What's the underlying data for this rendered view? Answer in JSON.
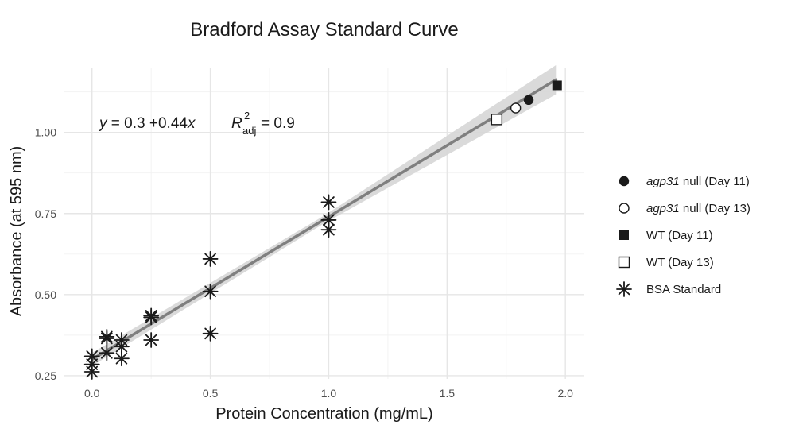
{
  "chart_data": {
    "type": "scatter",
    "title": "Bradford Assay Standard Curve",
    "xlabel": "Protein Concentration (mg/mL)",
    "ylabel": "Absorbance (at 595 nm)",
    "xlim": [
      -0.12,
      2.08
    ],
    "ylim": [
      0.24,
      1.2
    ],
    "x_ticks": [
      0.0,
      0.5,
      1.0,
      1.5,
      2.0
    ],
    "x_tick_labels": [
      "0.0",
      "0.5",
      "1.0",
      "1.5",
      "2.0"
    ],
    "y_ticks": [
      0.25,
      0.5,
      0.75,
      1.0
    ],
    "y_tick_labels": [
      "0.25",
      "0.50",
      "0.75",
      "1.00"
    ],
    "grid": true,
    "legend_position": "right",
    "regression": {
      "intercept": 0.3,
      "slope": 0.44,
      "x_range": [
        0.0,
        1.96
      ],
      "ci_halfwidth_low": 0.02,
      "ci_halfwidth_mid": 0.012,
      "ci_halfwidth_high": 0.045,
      "line_color": "#7f7f7f",
      "band_color": "#d6d6d6",
      "equation": {
        "y": "y",
        "eq": " = 0.3 ",
        "plus": "+",
        "coef": "0.44",
        "x": "x",
        "r": "R",
        "r_sup": "2",
        "r_sub": "adj",
        "r_val": " = 0.9"
      }
    },
    "series": [
      {
        "name": "BSA Standard",
        "name_italic": "",
        "name_rest": "BSA Standard",
        "marker": "asterisk",
        "points": [
          [
            0.0,
            0.262
          ],
          [
            0.0,
            0.285
          ],
          [
            0.0,
            0.31
          ],
          [
            0.0625,
            0.32
          ],
          [
            0.0625,
            0.365
          ],
          [
            0.0625,
            0.37
          ],
          [
            0.125,
            0.303
          ],
          [
            0.125,
            0.34
          ],
          [
            0.125,
            0.36
          ],
          [
            0.25,
            0.36
          ],
          [
            0.25,
            0.43
          ],
          [
            0.25,
            0.435
          ],
          [
            0.5,
            0.38
          ],
          [
            0.5,
            0.51
          ],
          [
            0.5,
            0.61
          ],
          [
            1.0,
            0.7
          ],
          [
            1.0,
            0.73
          ],
          [
            1.0,
            0.785
          ]
        ]
      },
      {
        "name": "agp31 null (Day 11)",
        "name_italic": "agp31",
        "name_rest": " null (Day 11)",
        "marker": "filled-circle",
        "points": [
          [
            1.845,
            1.1
          ]
        ]
      },
      {
        "name": "agp31 null (Day 13)",
        "name_italic": "agp31",
        "name_rest": " null (Day 13)",
        "marker": "open-circle",
        "points": [
          [
            1.79,
            1.075
          ]
        ]
      },
      {
        "name": "WT (Day 11)",
        "name_italic": "",
        "name_rest": "WT (Day 11)",
        "marker": "filled-square",
        "points": [
          [
            1.965,
            1.145
          ]
        ]
      },
      {
        "name": "WT (Day 13)",
        "name_italic": "",
        "name_rest": "WT (Day 13)",
        "marker": "open-square",
        "points": [
          [
            1.71,
            1.04
          ]
        ]
      }
    ],
    "legend_order": [
      1,
      2,
      3,
      4,
      0
    ],
    "marker_color": "#1a1a1a"
  }
}
